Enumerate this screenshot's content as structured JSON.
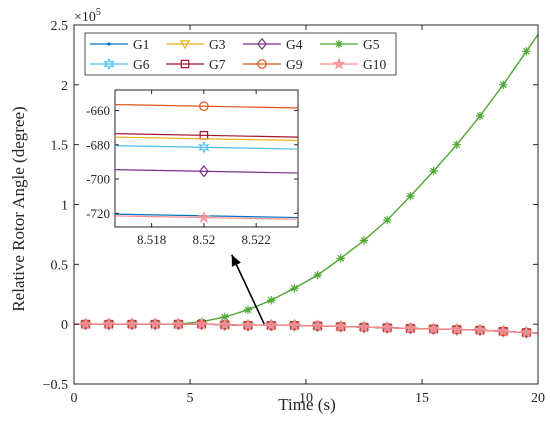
{
  "chart_data": {
    "type": "line",
    "xlabel": "Time (s)",
    "ylabel": "Relative Rotor Angle (degree)",
    "exponent_label": "×10",
    "exponent_power": "5",
    "xlim": [
      0,
      20
    ],
    "ylim": [
      -0.5,
      2.5
    ],
    "y_scale": 100000,
    "xticks": [
      "0",
      "5",
      "10",
      "15",
      "20"
    ],
    "yticks": [
      "−0.5",
      "0",
      "0.5",
      "1",
      "1.5",
      "2",
      "2.5"
    ],
    "grid": false,
    "legend_position": "top",
    "series": [
      {
        "name": "G1",
        "color": "#0072bd",
        "marker": "point",
        "x": [
          0,
          0.5,
          1.5,
          2.5,
          3.5,
          4.5,
          5.5,
          6.5,
          7.5,
          8.5,
          9.5,
          10.5,
          11.5,
          12.5,
          13.5,
          14.5,
          15.5,
          16.5,
          17.5,
          18.5,
          19.5,
          20
        ],
        "y": [
          0,
          0,
          0,
          0,
          0,
          0,
          0,
          -0.005,
          -0.01,
          -0.01,
          -0.01,
          -0.015,
          -0.02,
          -0.025,
          -0.03,
          -0.035,
          -0.04,
          -0.045,
          -0.05,
          -0.06,
          -0.07,
          -0.075
        ]
      },
      {
        "name": "G3",
        "color": "#edb120",
        "marker": "triangle-down",
        "x": [
          0,
          0.5,
          1.5,
          2.5,
          3.5,
          4.5,
          5.5,
          6.5,
          7.5,
          8.5,
          9.5,
          10.5,
          11.5,
          12.5,
          13.5,
          14.5,
          15.5,
          16.5,
          17.5,
          18.5,
          19.5,
          20
        ],
        "y": [
          0,
          0,
          0,
          0,
          0,
          0,
          0,
          -0.005,
          -0.01,
          -0.01,
          -0.01,
          -0.015,
          -0.02,
          -0.025,
          -0.03,
          -0.035,
          -0.04,
          -0.045,
          -0.05,
          -0.06,
          -0.07,
          -0.075
        ]
      },
      {
        "name": "G4",
        "color": "#7e2f8e",
        "marker": "diamond",
        "x": [
          0,
          0.5,
          1.5,
          2.5,
          3.5,
          4.5,
          5.5,
          6.5,
          7.5,
          8.5,
          9.5,
          10.5,
          11.5,
          12.5,
          13.5,
          14.5,
          15.5,
          16.5,
          17.5,
          18.5,
          19.5,
          20
        ],
        "y": [
          0,
          0,
          0,
          0,
          0,
          0,
          0,
          -0.005,
          -0.01,
          -0.01,
          -0.01,
          -0.015,
          -0.02,
          -0.025,
          -0.03,
          -0.035,
          -0.04,
          -0.045,
          -0.05,
          -0.06,
          -0.07,
          -0.075
        ]
      },
      {
        "name": "G5",
        "color": "#4da832",
        "marker": "asterisk",
        "x": [
          0,
          0.5,
          1.5,
          2.5,
          3.5,
          4.5,
          5.5,
          6.5,
          7.5,
          8.5,
          9.5,
          10.5,
          11.5,
          12.5,
          13.5,
          14.5,
          15.5,
          16.5,
          17.5,
          18.5,
          19.5,
          20
        ],
        "y": [
          0,
          0,
          0,
          0,
          0,
          0,
          0.02,
          0.06,
          0.12,
          0.2,
          0.3,
          0.41,
          0.55,
          0.7,
          0.87,
          1.07,
          1.28,
          1.5,
          1.74,
          2.0,
          2.28,
          2.42
        ]
      },
      {
        "name": "G6",
        "color": "#4dbeee",
        "marker": "hexagram",
        "x": [
          0,
          0.5,
          1.5,
          2.5,
          3.5,
          4.5,
          5.5,
          6.5,
          7.5,
          8.5,
          9.5,
          10.5,
          11.5,
          12.5,
          13.5,
          14.5,
          15.5,
          16.5,
          17.5,
          18.5,
          19.5,
          20
        ],
        "y": [
          0,
          0,
          0,
          0,
          0,
          0,
          0,
          -0.005,
          -0.01,
          -0.01,
          -0.01,
          -0.015,
          -0.02,
          -0.025,
          -0.03,
          -0.035,
          -0.04,
          -0.045,
          -0.05,
          -0.06,
          -0.07,
          -0.075
        ]
      },
      {
        "name": "G7",
        "color": "#a2142f",
        "marker": "square",
        "x": [
          0,
          0.5,
          1.5,
          2.5,
          3.5,
          4.5,
          5.5,
          6.5,
          7.5,
          8.5,
          9.5,
          10.5,
          11.5,
          12.5,
          13.5,
          14.5,
          15.5,
          16.5,
          17.5,
          18.5,
          19.5,
          20
        ],
        "y": [
          0,
          0,
          0,
          0,
          0,
          0,
          0,
          -0.005,
          -0.01,
          -0.01,
          -0.01,
          -0.015,
          -0.02,
          -0.025,
          -0.03,
          -0.035,
          -0.04,
          -0.045,
          -0.05,
          -0.06,
          -0.07,
          -0.075
        ]
      },
      {
        "name": "G9",
        "color": "#d95319",
        "marker": "circle",
        "x": [
          0,
          0.5,
          1.5,
          2.5,
          3.5,
          4.5,
          5.5,
          6.5,
          7.5,
          8.5,
          9.5,
          10.5,
          11.5,
          12.5,
          13.5,
          14.5,
          15.5,
          16.5,
          17.5,
          18.5,
          19.5,
          20
        ],
        "y": [
          0,
          0,
          0,
          0,
          0,
          0,
          0,
          -0.005,
          -0.01,
          -0.01,
          -0.01,
          -0.015,
          -0.02,
          -0.025,
          -0.03,
          -0.035,
          -0.04,
          -0.045,
          -0.05,
          -0.06,
          -0.07,
          -0.075
        ]
      },
      {
        "name": "G10",
        "color": "#ff8c94",
        "marker": "pentagram",
        "x": [
          0,
          0.5,
          1.5,
          2.5,
          3.5,
          4.5,
          5.5,
          6.5,
          7.5,
          8.5,
          9.5,
          10.5,
          11.5,
          12.5,
          13.5,
          14.5,
          15.5,
          16.5,
          17.5,
          18.5,
          19.5,
          20
        ],
        "y": [
          0,
          0,
          0,
          0,
          0,
          0,
          0,
          -0.005,
          -0.01,
          -0.01,
          -0.01,
          -0.015,
          -0.02,
          -0.025,
          -0.03,
          -0.035,
          -0.04,
          -0.045,
          -0.05,
          -0.06,
          -0.07,
          -0.075
        ]
      }
    ],
    "inset": {
      "xlim": [
        8.5166,
        8.5236
      ],
      "ylim": [
        -728,
        -648
      ],
      "xticks": [
        8.518,
        8.52,
        8.522
      ],
      "xtick_labels": [
        "8.518",
        "8.52",
        "8.522"
      ],
      "yticks": [
        -660,
        -680,
        -700,
        -720
      ],
      "ytick_labels": [
        "-660",
        "-680",
        "-700",
        "-720"
      ],
      "marker_x": 8.52,
      "series": [
        {
          "name": "G9",
          "color": "#d95319",
          "marker": "circle",
          "y_start": -656.5,
          "y_end": -658.5
        },
        {
          "name": "G7",
          "color": "#a2142f",
          "marker": "square",
          "y_start": -673.5,
          "y_end": -675.5
        },
        {
          "name": "G3",
          "color": "#edb120",
          "marker": "none",
          "y_start": -675.5,
          "y_end": -677.5
        },
        {
          "name": "G6",
          "color": "#4dbeee",
          "marker": "hexagram",
          "y_start": -680.5,
          "y_end": -682.5
        },
        {
          "name": "G4",
          "color": "#7e2f8e",
          "marker": "diamond",
          "y_start": -694.5,
          "y_end": -696.5
        },
        {
          "name": "G1",
          "color": "#0072bd",
          "marker": "none",
          "y_start": -720.5,
          "y_end": -722.5
        },
        {
          "name": "G10",
          "color": "#ff8c94",
          "marker": "pentagram",
          "y_start": -721.5,
          "y_end": -723.5
        }
      ]
    },
    "annotation": {
      "type": "arrow",
      "from_x": 8.2,
      "from_y": 0.0,
      "to_x": 6.8,
      "to_y": 0.58
    }
  }
}
